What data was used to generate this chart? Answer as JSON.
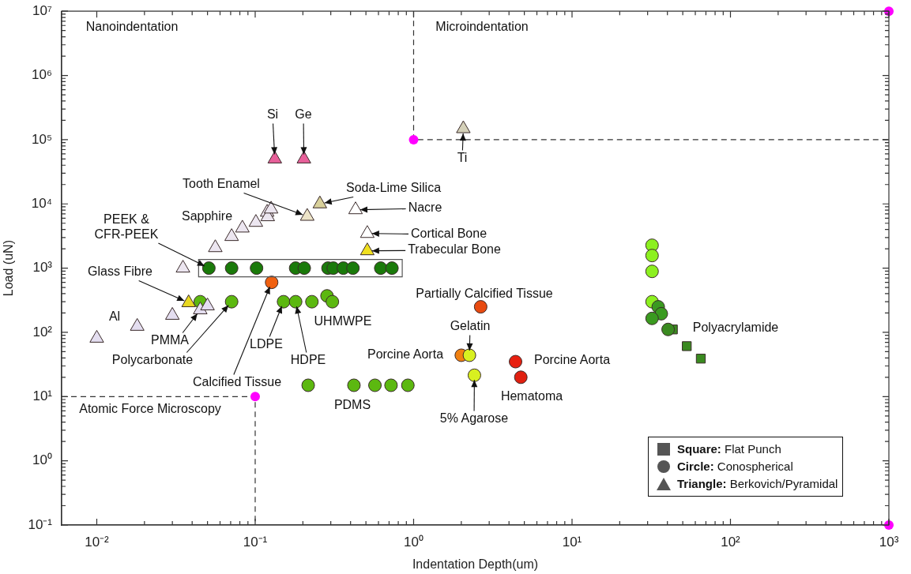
{
  "chart_data": {
    "type": "scatter",
    "xlabel": "Indentation Depth(um)",
    "ylabel": "Load (uN)",
    "log": "xy",
    "xlim": [
      0.006,
      1000
    ],
    "ylim": [
      0.1,
      10000000
    ],
    "xticks": [
      {
        "value": 0.01,
        "label": "10⁻²"
      },
      {
        "value": 0.1,
        "label": "10⁻¹"
      },
      {
        "value": 1,
        "label": "10⁰"
      },
      {
        "value": 10,
        "label": "10¹"
      },
      {
        "value": 100,
        "label": "10²"
      },
      {
        "value": 1000,
        "label": "10³"
      }
    ],
    "yticks": [
      {
        "value": 0.1,
        "label": "10⁻¹"
      },
      {
        "value": 1,
        "label": "10⁰"
      },
      {
        "value": 10,
        "label": "10¹"
      },
      {
        "value": 100,
        "label": "10²"
      },
      {
        "value": 1000,
        "label": "10³"
      },
      {
        "value": 10000,
        "label": "10⁴"
      },
      {
        "value": 100000,
        "label": "10⁵"
      },
      {
        "value": 1000000,
        "label": "10⁶"
      },
      {
        "value": 10000000,
        "label": "10⁷"
      }
    ],
    "series": [
      {
        "marker": "square",
        "x": [
          43.3,
          53,
          65
        ],
        "values": [
          111,
          61,
          39
        ],
        "colors": [
          "#3a8a20",
          "#3a8a20",
          "#3a8a20"
        ]
      },
      {
        "marker": "circle",
        "x": [
          0.051,
          0.071,
          0.102,
          0.18,
          0.204,
          0.288,
          0.311,
          0.36,
          0.414,
          0.62,
          0.73,
          0.127,
          0.045,
          0.071,
          0.151,
          0.18,
          0.228,
          0.284,
          0.307,
          0.216,
          0.42,
          0.57,
          0.72,
          0.92,
          2.65,
          2.0,
          2.25,
          2.42,
          4.4,
          4.75,
          32,
          32,
          32,
          32,
          35,
          36.6,
          32,
          40.4
        ],
        "values": [
          1000,
          1000,
          1000,
          1000,
          1000,
          1000,
          1000,
          1000,
          1000,
          1000,
          1000,
          600,
          300,
          300,
          300,
          300,
          300,
          370,
          300,
          15,
          15,
          15,
          15,
          15,
          250,
          44,
          44,
          21.5,
          35,
          20,
          2270,
          1570,
          890,
          300,
          250,
          195,
          165,
          111
        ],
        "colors": [
          "#1a7a0a",
          "#1a7a0a",
          "#1a7a0a",
          "#1a7a0a",
          "#1a7a0a",
          "#1a7a0a",
          "#1a7a0a",
          "#1a7a0a",
          "#1a7a0a",
          "#1a7a0a",
          "#1a7a0a",
          "#f06010",
          "#5cb810",
          "#5cb810",
          "#5cb810",
          "#5cb810",
          "#5cb810",
          "#5cb810",
          "#5cb810",
          "#5cb810",
          "#5cb810",
          "#5cb810",
          "#5cb810",
          "#5cb810",
          "#e84a10",
          "#f08010",
          "#d8f020",
          "#d8f020",
          "#e82010",
          "#e02010",
          "#8cf020",
          "#8cf020",
          "#8cf020",
          "#8cf020",
          "#3a9a20",
          "#3a9a20",
          "#3a9a20",
          "#3a8a20"
        ]
      },
      {
        "marker": "triangle",
        "x": [
          0.01,
          0.018,
          0.03,
          0.045,
          0.05,
          0.038,
          0.035,
          0.056,
          0.071,
          0.083,
          0.101,
          0.119,
          0.12,
          0.126,
          0.133,
          0.203,
          0.213,
          0.256,
          0.43,
          0.51,
          0.51,
          2.06
        ],
        "values": [
          81,
          124,
          184,
          224,
          258,
          289,
          1000,
          2080,
          3100,
          4200,
          5150,
          7400,
          6300,
          8300,
          50000,
          50000,
          6400,
          10000,
          8100,
          3460,
          1860,
          148000
        ],
        "colors": [
          "#e4def0",
          "#e4def0",
          "#e4def0",
          "#e4def0",
          "#e4def0",
          "#e8d820",
          "#ece6f0",
          "#ece6f0",
          "#ece6f0",
          "#ece6f0",
          "#ece6f0",
          "#ece6f0",
          "#ece6f0",
          "#ece6f0",
          "#e8609a",
          "#e8609a",
          "#ede4c8",
          "#d8d09a",
          "#ffffff",
          "#ffffff",
          "#f0e020",
          "#d4d0b8"
        ]
      },
      {
        "marker": "circle",
        "color": "#ff00ff",
        "x": [
          0.1,
          1,
          1000,
          1000
        ],
        "values": [
          10,
          100000,
          10000000,
          0.1
        ]
      },
      {
        "type": "line",
        "marker": "none",
        "line_style": "dashed",
        "color": "#333333",
        "x": [
          0.006,
          0.1,
          0.1
        ],
        "values": [
          10,
          10,
          0.1
        ]
      },
      {
        "type": "line",
        "marker": "none",
        "line_style": "dashed",
        "color": "#333333",
        "x": [
          1,
          1,
          1000
        ],
        "values": [
          10000000,
          100000,
          100000
        ]
      }
    ],
    "annotations": [
      "Nanoindentation",
      "Microindentation",
      "Atomic Force Microscopy",
      {
        "text": "Si",
        "x": 0.133,
        "y": 50000
      },
      {
        "text": "Ge",
        "x": 0.203,
        "y": 50000
      },
      {
        "text": "Ti",
        "x": 2.06,
        "y": 148000
      },
      {
        "text": "Tooth Enamel",
        "x": 0.213,
        "y": 6400
      },
      {
        "text": "Soda-Lime Silica",
        "x": 0.256,
        "y": 10000
      },
      {
        "text": "Nacre",
        "x": 0.43,
        "y": 8100
      },
      {
        "text": "Cortical Bone",
        "x": 0.51,
        "y": 3460
      },
      {
        "text": "Trabecular Bone",
        "x": 0.51,
        "y": 1860
      },
      "Sapphire",
      {
        "text": "PEEK &\nCFR-PEEK",
        "x": 0.051,
        "y": 1000
      },
      {
        "text": "Glass Fibre",
        "x": 0.038,
        "y": 289
      },
      "Al",
      {
        "text": "PMMA",
        "x": 0.045,
        "y": 224
      },
      {
        "text": "Polycarbonate",
        "x": 0.071,
        "y": 300
      },
      {
        "text": "Calcified Tissue",
        "x": 0.127,
        "y": 600
      },
      {
        "text": "LDPE",
        "x": 0.151,
        "y": 300
      },
      {
        "text": "HDPE",
        "x": 0.18,
        "y": 300
      },
      "UHMWPE",
      "PDMS",
      "Porcine Aorta",
      "Partially Calcified Tissue",
      {
        "text": "Gelatin",
        "x": 2.25,
        "y": 44
      },
      "Porcine Aorta",
      "Hematoma",
      {
        "text": "5% Agarose",
        "x": 2.42,
        "y": 21.5
      },
      "Polyacrylamide",
      "Square: Flat Punch",
      "Circle: Conospherical",
      "Triangle: Berkovich/Pyramidal"
    ]
  }
}
